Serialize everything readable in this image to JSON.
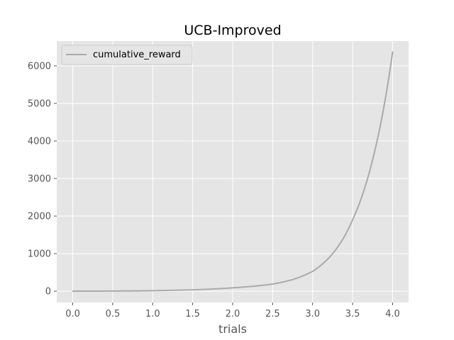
{
  "chart_data": {
    "type": "line",
    "title": "UCB-Improved",
    "xlabel": "trials",
    "ylabel": "",
    "xlim": [
      -0.2,
      4.2
    ],
    "ylim": [
      -300,
      6660
    ],
    "x_ticks": [
      0.0,
      0.5,
      1.0,
      1.5,
      2.0,
      2.5,
      3.0,
      3.5,
      4.0
    ],
    "x_tick_labels": [
      "0.0",
      "0.5",
      "1.0",
      "1.5",
      "2.0",
      "2.5",
      "3.0",
      "3.5",
      "4.0"
    ],
    "y_ticks": [
      0,
      1000,
      2000,
      3000,
      4000,
      5000,
      6000
    ],
    "y_tick_labels": [
      "0",
      "1000",
      "2000",
      "3000",
      "4000",
      "5000",
      "6000"
    ],
    "grid": true,
    "legend": {
      "position": "top-left"
    },
    "series": [
      {
        "name": "cumulative_reward",
        "color": "#aaaaaa",
        "x": [
          0.0,
          0.25,
          0.5,
          0.75,
          1.0,
          1.25,
          1.5,
          1.75,
          2.0,
          2.25,
          2.5,
          2.75,
          3.0,
          3.25,
          3.5,
          3.75,
          4.0
        ],
        "y": [
          0,
          2,
          4,
          8,
          14,
          24,
          37,
          58,
          90,
          130,
          190,
          310,
          530,
          1000,
          1900,
          3500,
          6370
        ]
      }
    ]
  },
  "colors": {
    "plot_background": "#e5e5e5",
    "grid": "#ffffff",
    "line": "#aaaaaa"
  }
}
